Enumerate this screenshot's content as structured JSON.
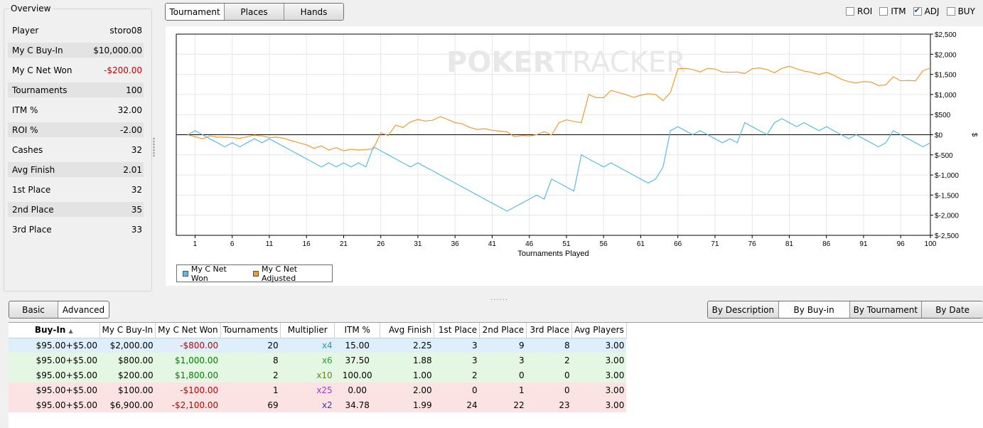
{
  "overview": {
    "title": "Overview",
    "rows": [
      {
        "label": "Player",
        "value": "storo08"
      },
      {
        "label": "My C Buy-In",
        "value": "$10,000.00"
      },
      {
        "label": "My C Net Won",
        "value": "-$200.00"
      },
      {
        "label": "Tournaments",
        "value": "100"
      },
      {
        "label": "ITM %",
        "value": "32.00"
      },
      {
        "label": "ROI %",
        "value": "-2.00"
      },
      {
        "label": "Cashes",
        "value": "32"
      },
      {
        "label": "Avg Finish",
        "value": "2.01"
      },
      {
        "label": "1st Place",
        "value": "32"
      },
      {
        "label": "2nd Place",
        "value": "35"
      },
      {
        "label": "3rd Place",
        "value": "33"
      }
    ]
  },
  "view_tabs": [
    "Tournament",
    "Places",
    "Hands"
  ],
  "checkboxes": [
    {
      "label": "ROI",
      "checked": false
    },
    {
      "label": "ITM",
      "checked": false
    },
    {
      "label": "ADJ",
      "checked": true
    },
    {
      "label": "BUY",
      "checked": false
    }
  ],
  "watermark": {
    "part1": "POKER",
    "part2": "TRACKER"
  },
  "chart_data": {
    "type": "line",
    "xlabel": "Tournaments Played",
    "ylabel": "$",
    "xlim": [
      1,
      100
    ],
    "ylim": [
      -2500,
      2500
    ],
    "xticks": [
      1,
      6,
      11,
      16,
      21,
      26,
      31,
      36,
      41,
      46,
      51,
      56,
      61,
      66,
      71,
      76,
      81,
      86,
      91,
      96,
      100
    ],
    "yticks": [
      {
        "v": 2500,
        "label": "$2,500"
      },
      {
        "v": 2000,
        "label": "$2,000"
      },
      {
        "v": 1500,
        "label": "$1,500"
      },
      {
        "v": 1000,
        "label": "$1,000"
      },
      {
        "v": 500,
        "label": "$500"
      },
      {
        "v": 0,
        "label": "$0"
      },
      {
        "v": -500,
        "label": "$-500"
      },
      {
        "v": -1000,
        "label": "$-1,000"
      },
      {
        "v": -1500,
        "label": "$-1,500"
      },
      {
        "v": -2000,
        "label": "$-2,000"
      },
      {
        "v": -2500,
        "label": "$-2,500"
      }
    ],
    "grid": true,
    "legend_position": "bottom-left",
    "series": [
      {
        "name": "My C Net Won",
        "color": "#5bbce4",
        "x": [
          0,
          1,
          2,
          3,
          4,
          5,
          6,
          7,
          8,
          9,
          10,
          11,
          12,
          13,
          14,
          15,
          16,
          17,
          18,
          19,
          20,
          21,
          22,
          23,
          24,
          25,
          26,
          27,
          28,
          29,
          30,
          31,
          32,
          33,
          34,
          35,
          36,
          37,
          38,
          39,
          40,
          41,
          42,
          43,
          44,
          45,
          46,
          47,
          48,
          49,
          50,
          51,
          52,
          53,
          54,
          55,
          56,
          57,
          58,
          59,
          60,
          61,
          62,
          63,
          64,
          65,
          66,
          67,
          68,
          69,
          70,
          71,
          72,
          73,
          74,
          75,
          76,
          77,
          78,
          79,
          80,
          81,
          82,
          83,
          84,
          85,
          86,
          87,
          88,
          89,
          90,
          91,
          92,
          93,
          94,
          95,
          96,
          97,
          98,
          99,
          100
        ],
        "values": [
          0,
          100,
          0,
          -100,
          -200,
          -300,
          -200,
          -300,
          -200,
          -100,
          -200,
          -100,
          -200,
          -300,
          -400,
          -500,
          -600,
          -700,
          -800,
          -700,
          -800,
          -700,
          -800,
          -700,
          -800,
          -300,
          -400,
          -500,
          -600,
          -700,
          -800,
          -700,
          -800,
          -900,
          -1000,
          -1100,
          -1200,
          -1300,
          -1400,
          -1500,
          -1600,
          -1700,
          -1800,
          -1900,
          -1800,
          -1700,
          -1600,
          -1500,
          -1600,
          -1100,
          -1200,
          -1300,
          -1400,
          -500,
          -600,
          -700,
          -800,
          -700,
          -800,
          -900,
          -1000,
          -1100,
          -1200,
          -1100,
          -800,
          100,
          200,
          100,
          0,
          100,
          0,
          -100,
          -200,
          -100,
          -200,
          300,
          200,
          100,
          0,
          300,
          400,
          300,
          200,
          300,
          200,
          100,
          200,
          100,
          0,
          -100,
          0,
          -100,
          -200,
          -300,
          -200,
          100,
          0,
          -100,
          -200,
          -300,
          -200
        ]
      },
      {
        "name": "My C Net Adjusted",
        "color": "#f29a31",
        "x": [
          0,
          1,
          2,
          3,
          4,
          5,
          6,
          7,
          8,
          9,
          10,
          11,
          12,
          13,
          14,
          15,
          16,
          17,
          18,
          19,
          20,
          21,
          22,
          23,
          24,
          25,
          26,
          27,
          28,
          29,
          30,
          31,
          32,
          33,
          34,
          35,
          36,
          37,
          38,
          39,
          40,
          41,
          42,
          43,
          44,
          45,
          46,
          47,
          48,
          49,
          50,
          51,
          52,
          53,
          54,
          55,
          56,
          57,
          58,
          59,
          60,
          61,
          62,
          63,
          64,
          65,
          66,
          67,
          68,
          69,
          70,
          71,
          72,
          73,
          74,
          75,
          76,
          77,
          78,
          79,
          80,
          81,
          82,
          83,
          84,
          85,
          86,
          87,
          88,
          89,
          90,
          91,
          92,
          93,
          94,
          95,
          96,
          97,
          98,
          99,
          100
        ],
        "values": [
          0,
          -50,
          -100,
          -30,
          -60,
          -60,
          -70,
          -90,
          -50,
          -10,
          -30,
          -70,
          -60,
          -90,
          -150,
          -200,
          -250,
          -340,
          -280,
          -380,
          -320,
          -400,
          -360,
          -380,
          -370,
          -350,
          50,
          -20,
          240,
          180,
          320,
          380,
          340,
          360,
          450,
          380,
          300,
          270,
          180,
          130,
          150,
          110,
          90,
          70,
          -50,
          -20,
          -30,
          0,
          80,
          -10,
          300,
          370,
          330,
          300,
          1000,
          920,
          920,
          1100,
          1050,
          1000,
          930,
          980,
          1020,
          1000,
          850,
          1050,
          1640,
          1650,
          1620,
          1560,
          1650,
          1630,
          1560,
          1550,
          1560,
          1520,
          1640,
          1660,
          1620,
          1540,
          1650,
          1700,
          1640,
          1580,
          1550,
          1500,
          1550,
          1480,
          1380,
          1320,
          1290,
          1320,
          1310,
          1220,
          1240,
          1440,
          1340,
          1350,
          1340,
          1590,
          1660
        ]
      }
    ]
  },
  "lower_tabs": [
    "Basic",
    "Advanced"
  ],
  "group_tabs": [
    "By Description",
    "By Buy-in",
    "By Tournament",
    "By Date"
  ],
  "table": {
    "columns": [
      "Buy-In",
      "My C Buy-In",
      "My C Net Won",
      "Tournaments",
      "Multiplier",
      "ITM %",
      "Avg Finish",
      "1st Place",
      "2nd Place",
      "3rd Place",
      "Avg Players"
    ],
    "rows": [
      {
        "tone": "blue",
        "mult_color": "teal",
        "net_sign": "neg",
        "cells": [
          "$95.00+$5.00",
          "$2,000.00",
          "-$800.00",
          "20",
          "x4",
          "15.00",
          "2.25",
          "3",
          "9",
          "8",
          "3.00"
        ]
      },
      {
        "tone": "green",
        "mult_color": "green",
        "net_sign": "pos",
        "cells": [
          "$95.00+$5.00",
          "$800.00",
          "$1,000.00",
          "8",
          "x6",
          "37.50",
          "1.88",
          "3",
          "3",
          "2",
          "3.00"
        ]
      },
      {
        "tone": "green",
        "mult_color": "olive",
        "net_sign": "pos",
        "cells": [
          "$95.00+$5.00",
          "$200.00",
          "$1,800.00",
          "2",
          "x10",
          "100.00",
          "1.00",
          "2",
          "0",
          "0",
          "3.00"
        ]
      },
      {
        "tone": "red",
        "mult_color": "purple",
        "net_sign": "neg",
        "cells": [
          "$95.00+$5.00",
          "$100.00",
          "-$100.00",
          "1",
          "x25",
          "0.00",
          "2.00",
          "0",
          "1",
          "0",
          "3.00"
        ]
      },
      {
        "tone": "red",
        "mult_color": "blue",
        "net_sign": "neg",
        "cells": [
          "$95.00+$5.00",
          "$6,900.00",
          "-$2,100.00",
          "69",
          "x2",
          "34.78",
          "1.99",
          "24",
          "22",
          "23",
          "3.00"
        ]
      }
    ]
  }
}
